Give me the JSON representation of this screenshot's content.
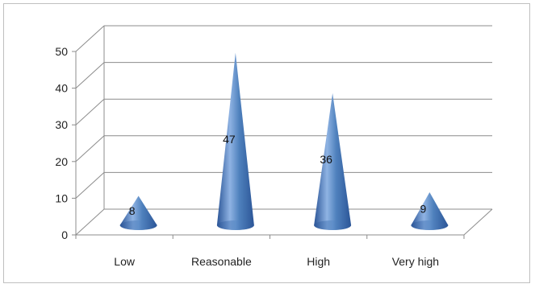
{
  "chart_data": {
    "type": "bar",
    "style": "3d-cone",
    "categories": [
      "Low",
      "Reasonable",
      "High",
      "Very high"
    ],
    "values": [
      8,
      47,
      36,
      9
    ],
    "data_labels": [
      "8",
      "47",
      "36",
      "9"
    ],
    "y_ticks": [
      "0",
      "10",
      "20",
      "30",
      "40",
      "50"
    ],
    "ylim": [
      0,
      50
    ],
    "grid": true,
    "legend": "none",
    "title": "",
    "xlabel": "",
    "ylabel": "",
    "colors": {
      "cone_light": "#8fb3e3",
      "cone_mid": "#4f81bd",
      "cone_dark": "#2b5597",
      "gridline": "#8c8c8c"
    }
  }
}
